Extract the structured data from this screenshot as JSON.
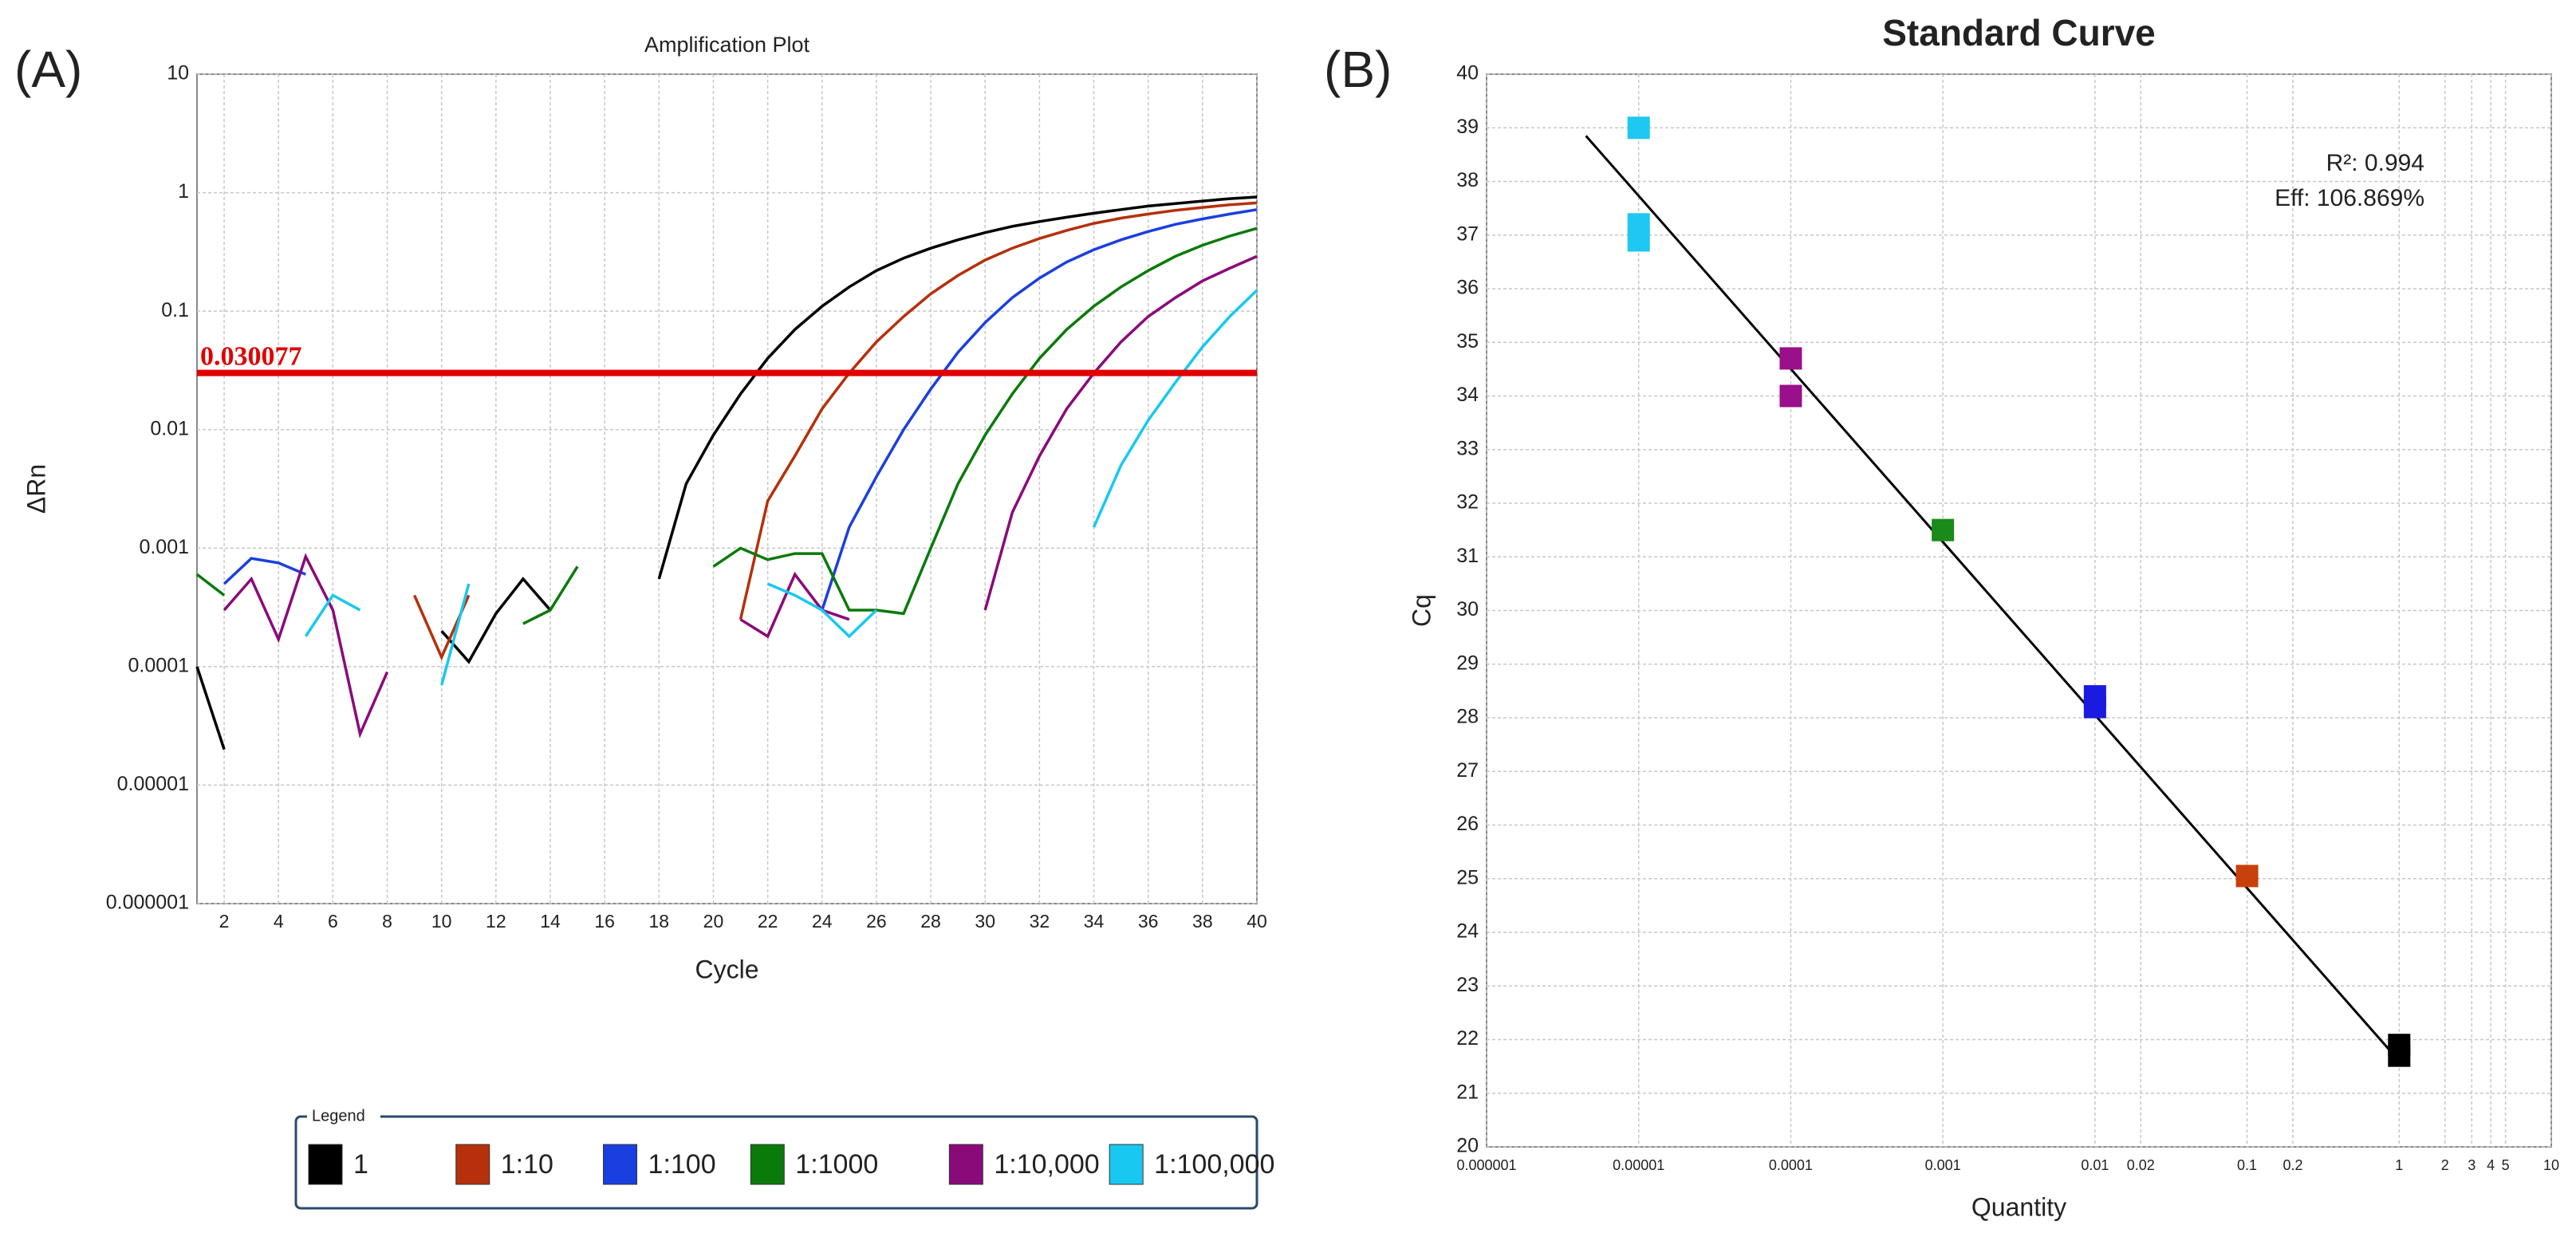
{
  "panel_labels": [
    "(A)",
    "(B)"
  ],
  "chart_data": [
    {
      "type": "line",
      "title": "Amplification Plot",
      "x_label": "Cycle",
      "y_label": "ΔRn",
      "ylog": true,
      "grid": true,
      "xlim": [
        1,
        40
      ],
      "xticks": [
        2,
        4,
        6,
        8,
        10,
        12,
        14,
        16,
        18,
        20,
        22,
        24,
        26,
        28,
        30,
        32,
        34,
        36,
        38,
        40
      ],
      "ylim": [
        1e-06,
        10
      ],
      "yticks": [
        1e-06,
        1e-05,
        0.0001,
        0.001,
        0.01,
        0.1,
        1,
        10
      ],
      "threshold": {
        "value": 0.030077,
        "color": "#e00000"
      },
      "legend_title": "Legend",
      "x": [
        1,
        2,
        3,
        4,
        5,
        6,
        7,
        8,
        9,
        10,
        11,
        12,
        13,
        14,
        15,
        16,
        17,
        18,
        19,
        20,
        21,
        22,
        23,
        24,
        25,
        26,
        27,
        28,
        29,
        30,
        31,
        32,
        33,
        34,
        35,
        36,
        37,
        38,
        39,
        40
      ],
      "series": [
        {
          "name": "1",
          "color": "#000000",
          "values": [
            0.0001,
            2e-05,
            null,
            null,
            null,
            null,
            null,
            null,
            null,
            0.0002,
            0.00011,
            0.00028,
            0.00055,
            0.0003,
            null,
            null,
            null,
            0.00055,
            0.0035,
            0.009,
            0.02,
            0.04,
            0.07,
            0.11,
            0.16,
            0.22,
            0.28,
            0.34,
            0.4,
            0.46,
            0.52,
            0.57,
            0.62,
            0.67,
            0.72,
            0.77,
            0.81,
            0.85,
            0.89,
            0.92
          ]
        },
        {
          "name": "1:10",
          "color": "#b5300b",
          "values": [
            null,
            null,
            null,
            null,
            null,
            null,
            null,
            null,
            0.0004,
            0.00012,
            0.0004,
            null,
            null,
            null,
            null,
            null,
            null,
            null,
            null,
            null,
            0.00025,
            0.0025,
            0.006,
            0.015,
            0.03,
            0.055,
            0.09,
            0.14,
            0.2,
            0.27,
            0.34,
            0.41,
            0.48,
            0.55,
            0.61,
            0.66,
            0.71,
            0.75,
            0.79,
            0.82
          ]
        },
        {
          "name": "1:100",
          "color": "#1a3fe0",
          "values": [
            null,
            0.0005,
            0.00082,
            0.00075,
            0.0006,
            null,
            null,
            null,
            null,
            null,
            null,
            null,
            null,
            null,
            null,
            null,
            null,
            null,
            null,
            null,
            null,
            null,
            null,
            0.0003,
            0.0015,
            0.004,
            0.01,
            0.022,
            0.045,
            0.08,
            0.13,
            0.19,
            0.26,
            0.33,
            0.4,
            0.47,
            0.54,
            0.6,
            0.66,
            0.72
          ]
        },
        {
          "name": "1:1000",
          "color": "#0a7a0a",
          "values": [
            0.0006,
            0.0004,
            null,
            null,
            null,
            null,
            null,
            null,
            null,
            null,
            null,
            null,
            0.00023,
            0.0003,
            0.0007,
            null,
            null,
            null,
            null,
            0.0007,
            0.001,
            0.0008,
            0.0009,
            0.0009,
            0.0003,
            0.0003,
            0.00028,
            0.001,
            0.0035,
            0.009,
            0.02,
            0.04,
            0.07,
            0.11,
            0.16,
            0.22,
            0.29,
            0.36,
            0.43,
            0.5
          ]
        },
        {
          "name": "1:10,000",
          "color": "#8b0a7a",
          "values": [
            null,
            0.0003,
            0.00055,
            0.00017,
            0.00085,
            0.0003,
            2.7e-05,
            9e-05,
            null,
            null,
            null,
            null,
            null,
            null,
            null,
            null,
            null,
            null,
            null,
            null,
            0.00025,
            0.00018,
            0.0006,
            0.0003,
            0.00025,
            null,
            null,
            null,
            null,
            0.0003,
            0.002,
            0.006,
            0.015,
            0.03,
            0.055,
            0.09,
            0.13,
            0.18,
            0.23,
            0.29
          ]
        },
        {
          "name": "1:100,000",
          "color": "#18c8f0",
          "values": [
            null,
            null,
            null,
            null,
            0.00018,
            0.0004,
            0.0003,
            null,
            null,
            7e-05,
            0.0005,
            null,
            null,
            null,
            null,
            null,
            null,
            null,
            null,
            null,
            null,
            0.0005,
            0.0004,
            0.0003,
            0.00018,
            0.0003,
            null,
            null,
            null,
            null,
            null,
            null,
            null,
            0.0015,
            0.005,
            0.012,
            0.025,
            0.05,
            0.09,
            0.15
          ]
        }
      ]
    },
    {
      "type": "scatter",
      "title": "Standard Curve",
      "x_label": "Quantity",
      "y_label": "Cq",
      "xlog": true,
      "grid": true,
      "xlim": [
        1e-06,
        10
      ],
      "xticks": [
        1e-06,
        1e-05,
        0.0001,
        0.001,
        0.01,
        0.02,
        0.1,
        0.2,
        1,
        2,
        3,
        4,
        5,
        10
      ],
      "ylim": [
        20,
        40
      ],
      "yticks": [
        20,
        21,
        22,
        23,
        24,
        25,
        26,
        27,
        28,
        29,
        30,
        31,
        32,
        33,
        34,
        35,
        36,
        37,
        38,
        39,
        40
      ],
      "annotations": [
        "R²: 0.994",
        "Eff: 106.869%"
      ],
      "fit": {
        "color": "#000000",
        "x": [
          4.5e-06,
          1
        ],
        "values": [
          38.85,
          21.6
        ]
      },
      "series": [
        {
          "color": "#1ec8f0",
          "x": [
            1e-05,
            1e-05,
            1e-05
          ],
          "values": [
            39,
            37.2,
            36.9
          ]
        },
        {
          "color": "#9a0f8a",
          "x": [
            0.0001,
            0.0001
          ],
          "values": [
            34.7,
            34.0
          ]
        },
        {
          "color": "#1a8a1a",
          "x": [
            0.001
          ],
          "values": [
            31.5
          ]
        },
        {
          "color": "#1a1ae0",
          "x": [
            0.01,
            0.01
          ],
          "values": [
            28.4,
            28.2
          ]
        },
        {
          "color": "#c8400a",
          "x": [
            0.1
          ],
          "values": [
            25.05
          ]
        },
        {
          "color": "#000000",
          "x": [
            1,
            1
          ],
          "values": [
            21.9,
            21.7
          ]
        }
      ]
    }
  ]
}
